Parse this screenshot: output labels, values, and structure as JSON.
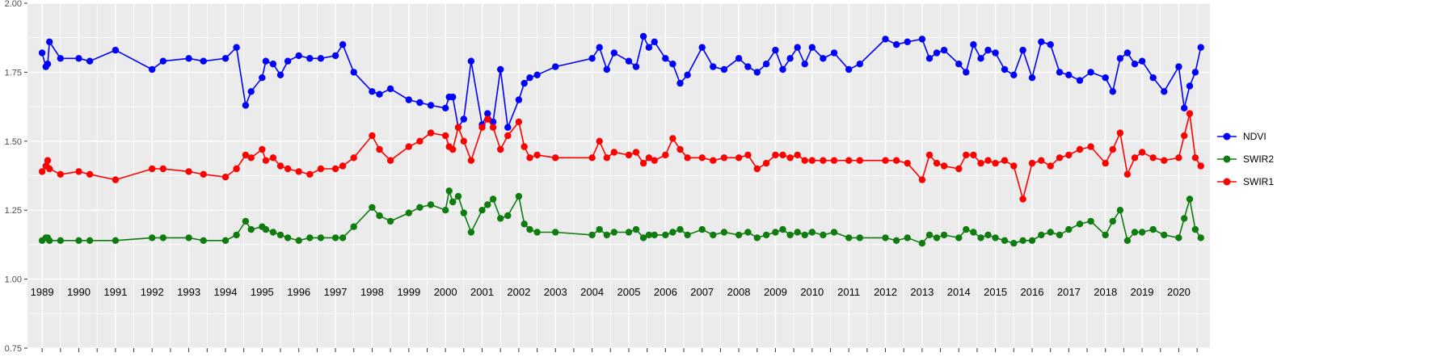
{
  "chart_data": {
    "type": "line",
    "title": "",
    "xlabel": "",
    "ylabel": "",
    "grid": "on",
    "legend_position": "right",
    "panel_background": "#ebebeb",
    "grid_color": "#ffffff",
    "axis_text_color": "#4d4d4d",
    "year_label_color": "#000000",
    "xlim": [
      1988.6,
      2020.85
    ],
    "ylim": [
      0.75,
      2.0
    ],
    "x_ticks": [
      1989,
      1990,
      1991,
      1992,
      1993,
      1994,
      1995,
      1996,
      1997,
      1998,
      1999,
      2000,
      2001,
      2002,
      2003,
      2004,
      2005,
      2006,
      2007,
      2008,
      2009,
      2010,
      2011,
      2012,
      2013,
      2014,
      2015,
      2016,
      2017,
      2018,
      2019,
      2020
    ],
    "y_ticks": [
      0.75,
      1.0,
      1.25,
      1.5,
      1.75,
      2.0
    ],
    "y_tick_labels": [
      "0.75",
      "1.00",
      "1.25",
      "1.50",
      "1.75",
      "2.00"
    ],
    "x": [
      1989.0,
      1989.1,
      1989.15,
      1989.2,
      1989.5,
      1990.0,
      1990.3,
      1991.0,
      1992.0,
      1992.3,
      1993.0,
      1993.4,
      1994.0,
      1994.3,
      1994.55,
      1994.7,
      1995.0,
      1995.1,
      1995.3,
      1995.5,
      1995.7,
      1996.0,
      1996.3,
      1996.6,
      1997.0,
      1997.2,
      1997.5,
      1998.0,
      1998.2,
      1998.5,
      1999.0,
      1999.3,
      1999.6,
      2000.0,
      2000.1,
      2000.2,
      2000.35,
      2000.5,
      2000.7,
      2001.0,
      2001.15,
      2001.3,
      2001.5,
      2001.7,
      2002.0,
      2002.15,
      2002.3,
      2002.5,
      2003.0,
      2004.0,
      2004.2,
      2004.4,
      2004.6,
      2005.0,
      2005.2,
      2005.4,
      2005.55,
      2005.7,
      2006.0,
      2006.2,
      2006.4,
      2006.6,
      2007.0,
      2007.3,
      2007.6,
      2008.0,
      2008.25,
      2008.5,
      2008.75,
      2009.0,
      2009.2,
      2009.4,
      2009.6,
      2009.8,
      2010.0,
      2010.3,
      2010.6,
      2011.0,
      2011.3,
      2012.0,
      2012.3,
      2012.6,
      2013.0,
      2013.2,
      2013.4,
      2013.6,
      2014.0,
      2014.2,
      2014.4,
      2014.6,
      2014.8,
      2015.0,
      2015.25,
      2015.5,
      2015.75,
      2016.0,
      2016.25,
      2016.5,
      2016.75,
      2017.0,
      2017.3,
      2017.6,
      2018.0,
      2018.2,
      2018.4,
      2018.6,
      2018.8,
      2019.0,
      2019.3,
      2019.6,
      2020.0,
      2020.15,
      2020.3,
      2020.45,
      2020.6
    ],
    "series": [
      {
        "name": "NDVI",
        "color": "#0000ff",
        "values": [
          1.82,
          1.77,
          1.78,
          1.86,
          1.8,
          1.8,
          1.79,
          1.83,
          1.76,
          1.79,
          1.8,
          1.79,
          1.8,
          1.84,
          1.63,
          1.68,
          1.73,
          1.79,
          1.78,
          1.74,
          1.79,
          1.81,
          1.8,
          1.8,
          1.81,
          1.85,
          1.75,
          1.68,
          1.67,
          1.69,
          1.65,
          1.64,
          1.63,
          1.62,
          1.66,
          1.66,
          1.55,
          1.58,
          1.79,
          1.56,
          1.6,
          1.57,
          1.76,
          1.55,
          1.65,
          1.71,
          1.73,
          1.74,
          1.77,
          1.8,
          1.84,
          1.76,
          1.82,
          1.79,
          1.77,
          1.88,
          1.84,
          1.86,
          1.8,
          1.78,
          1.71,
          1.74,
          1.84,
          1.77,
          1.76,
          1.8,
          1.77,
          1.75,
          1.78,
          1.83,
          1.76,
          1.8,
          1.84,
          1.78,
          1.84,
          1.8,
          1.82,
          1.76,
          1.78,
          1.87,
          1.85,
          1.86,
          1.87,
          1.8,
          1.82,
          1.83,
          1.78,
          1.75,
          1.85,
          1.8,
          1.83,
          1.82,
          1.76,
          1.74,
          1.83,
          1.73,
          1.86,
          1.85,
          1.75,
          1.74,
          1.72,
          1.75,
          1.73,
          1.68,
          1.8,
          1.82,
          1.78,
          1.79,
          1.73,
          1.68,
          1.77,
          1.62,
          1.7,
          1.75,
          1.84
        ]
      },
      {
        "name": "SWIR2",
        "color": "#0e7c0e",
        "values": [
          1.14,
          1.15,
          1.15,
          1.14,
          1.14,
          1.14,
          1.14,
          1.14,
          1.15,
          1.15,
          1.15,
          1.14,
          1.14,
          1.16,
          1.21,
          1.18,
          1.19,
          1.18,
          1.17,
          1.16,
          1.15,
          1.14,
          1.15,
          1.15,
          1.15,
          1.15,
          1.19,
          1.26,
          1.23,
          1.21,
          1.24,
          1.26,
          1.27,
          1.25,
          1.32,
          1.28,
          1.3,
          1.24,
          1.17,
          1.25,
          1.27,
          1.29,
          1.22,
          1.23,
          1.3,
          1.2,
          1.18,
          1.17,
          1.17,
          1.16,
          1.18,
          1.16,
          1.17,
          1.17,
          1.18,
          1.15,
          1.16,
          1.16,
          1.16,
          1.17,
          1.18,
          1.16,
          1.18,
          1.16,
          1.17,
          1.16,
          1.17,
          1.15,
          1.16,
          1.17,
          1.18,
          1.16,
          1.17,
          1.16,
          1.17,
          1.16,
          1.17,
          1.15,
          1.15,
          1.15,
          1.14,
          1.15,
          1.13,
          1.16,
          1.15,
          1.16,
          1.15,
          1.18,
          1.17,
          1.15,
          1.16,
          1.15,
          1.14,
          1.13,
          1.14,
          1.14,
          1.16,
          1.17,
          1.16,
          1.18,
          1.2,
          1.21,
          1.16,
          1.21,
          1.25,
          1.14,
          1.17,
          1.17,
          1.18,
          1.16,
          1.15,
          1.22,
          1.29,
          1.18,
          1.15
        ]
      },
      {
        "name": "SWIR1",
        "color": "#ff0000",
        "values": [
          1.39,
          1.41,
          1.43,
          1.4,
          1.38,
          1.39,
          1.38,
          1.36,
          1.4,
          1.4,
          1.39,
          1.38,
          1.37,
          1.4,
          1.45,
          1.44,
          1.47,
          1.43,
          1.44,
          1.41,
          1.4,
          1.39,
          1.38,
          1.4,
          1.4,
          1.41,
          1.44,
          1.52,
          1.47,
          1.43,
          1.48,
          1.5,
          1.53,
          1.52,
          1.48,
          1.47,
          1.55,
          1.5,
          1.43,
          1.55,
          1.58,
          1.55,
          1.47,
          1.52,
          1.57,
          1.48,
          1.44,
          1.45,
          1.44,
          1.44,
          1.5,
          1.44,
          1.46,
          1.45,
          1.46,
          1.42,
          1.44,
          1.43,
          1.45,
          1.51,
          1.47,
          1.44,
          1.44,
          1.43,
          1.44,
          1.44,
          1.45,
          1.4,
          1.42,
          1.45,
          1.45,
          1.44,
          1.45,
          1.43,
          1.43,
          1.43,
          1.43,
          1.43,
          1.43,
          1.43,
          1.43,
          1.42,
          1.36,
          1.45,
          1.42,
          1.41,
          1.4,
          1.45,
          1.45,
          1.42,
          1.43,
          1.42,
          1.43,
          1.41,
          1.29,
          1.42,
          1.43,
          1.41,
          1.44,
          1.45,
          1.47,
          1.48,
          1.42,
          1.47,
          1.53,
          1.38,
          1.44,
          1.46,
          1.44,
          1.43,
          1.44,
          1.52,
          1.6,
          1.44,
          1.41
        ]
      }
    ],
    "legend": {
      "items": [
        {
          "label": "NDVI",
          "color": "#0000ff"
        },
        {
          "label": "SWIR2",
          "color": "#0e7c0e"
        },
        {
          "label": "SWIR1",
          "color": "#ff0000"
        }
      ]
    }
  }
}
